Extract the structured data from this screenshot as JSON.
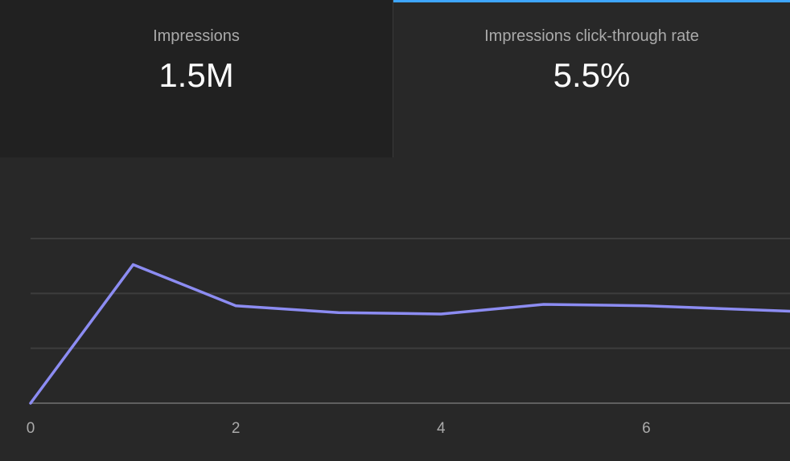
{
  "tabs": [
    {
      "label": "Impressions",
      "value": "1.5M",
      "active": false
    },
    {
      "label": "Impressions click-through rate",
      "value": "5.5%",
      "active": true
    }
  ],
  "colors": {
    "background": "#282828",
    "inactive_tab": "#212121",
    "active_tab_indicator": "#3ea6ff",
    "series_line": "#8c8cf2",
    "muted_text": "#aaaaaa"
  },
  "chart_data": {
    "type": "line",
    "x": [
      0,
      1,
      2,
      3,
      4,
      5,
      6,
      7.4
    ],
    "series": [
      {
        "values": [
          0,
          5.05,
          3.55,
          3.3,
          3.25,
          3.6,
          3.55,
          3.35
        ]
      }
    ],
    "x_ticks": [
      "0",
      "2",
      "4",
      "6"
    ],
    "xlim": [
      0,
      7.4
    ],
    "ylim": [
      0,
      6
    ],
    "y_gridlines": [
      2,
      4,
      6
    ],
    "grid": true,
    "legend": "none"
  }
}
